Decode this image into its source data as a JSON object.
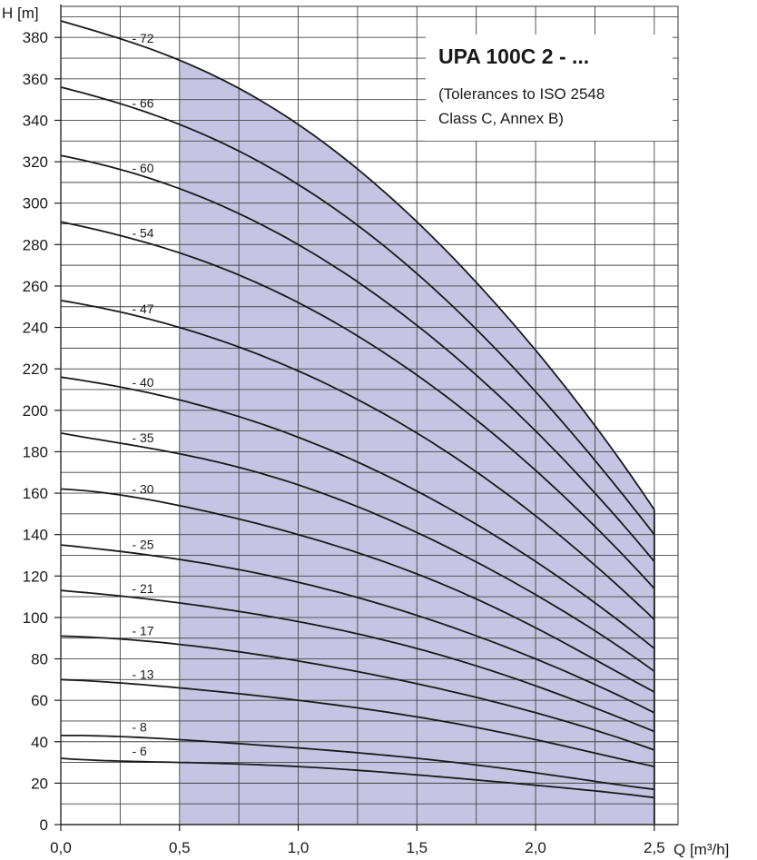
{
  "chart_data": {
    "type": "line",
    "title": "UPA 100C 2 - ...",
    "subtitle_lines": [
      "(Tolerances to ISO 2548",
      "Class C, Annex B)"
    ],
    "xlabel": "Q [m³/h]",
    "ylabel": "H [m]",
    "xlim": [
      0,
      2.6
    ],
    "ylim": [
      0,
      395
    ],
    "x_ticks": [
      0,
      0.5,
      1,
      1.5,
      2,
      2.5
    ],
    "x_tick_labels": [
      "0,0",
      "0,5",
      "1,0",
      "1,5",
      "2,0",
      "2,5"
    ],
    "y_ticks": [
      0,
      20,
      40,
      60,
      80,
      100,
      120,
      140,
      160,
      180,
      200,
      220,
      240,
      260,
      280,
      300,
      320,
      340,
      360,
      380
    ],
    "y_tick_labels": [
      "0",
      "20",
      "40",
      "60",
      "80",
      "100",
      "120",
      "140",
      "160",
      "180",
      "200",
      "220",
      "240",
      "260",
      "280",
      "300",
      "320",
      "340",
      "360",
      "380"
    ],
    "grid": true,
    "x_minor_step": 0.25,
    "y_minor_step": 10,
    "working_range": {
      "q_min": 0.5,
      "q_max": 2.5,
      "fill_color": "#c5c5e3"
    },
    "x": [
      0,
      0.5,
      1.0,
      1.5,
      2.0,
      2.5
    ],
    "series": [
      {
        "name": "- 72",
        "values": [
          388,
          369,
          338,
          291,
          229,
          152
        ]
      },
      {
        "name": "- 66",
        "values": [
          356,
          338,
          309,
          266,
          209,
          140
        ]
      },
      {
        "name": "- 60",
        "values": [
          323,
          307,
          280,
          241,
          190,
          127
        ]
      },
      {
        "name": "- 54",
        "values": [
          291,
          276,
          252,
          217,
          171,
          114
        ]
      },
      {
        "name": "- 47",
        "values": [
          253,
          240,
          219,
          189,
          149,
          99
        ]
      },
      {
        "name": "- 40",
        "values": [
          216,
          205,
          187,
          161,
          127,
          85
        ]
      },
      {
        "name": "- 35",
        "values": [
          189,
          179,
          164,
          141,
          111,
          74
        ]
      },
      {
        "name": "- 30",
        "values": [
          162,
          154,
          140,
          121,
          95,
          64
        ]
      },
      {
        "name": "- 25",
        "values": [
          135,
          128,
          117,
          101,
          80,
          54
        ]
      },
      {
        "name": "- 21",
        "values": [
          113,
          107,
          98,
          85,
          67,
          45
        ]
      },
      {
        "name": "- 17",
        "values": [
          91,
          87,
          79,
          68,
          54,
          36
        ]
      },
      {
        "name": "- 13",
        "values": [
          70,
          66,
          60,
          52,
          41,
          28
        ]
      },
      {
        "name": "- 8",
        "values": [
          43,
          41,
          37,
          32,
          25,
          17
        ]
      },
      {
        "name": "- 6",
        "values": [
          32,
          30,
          28,
          24,
          19,
          13
        ]
      }
    ]
  }
}
